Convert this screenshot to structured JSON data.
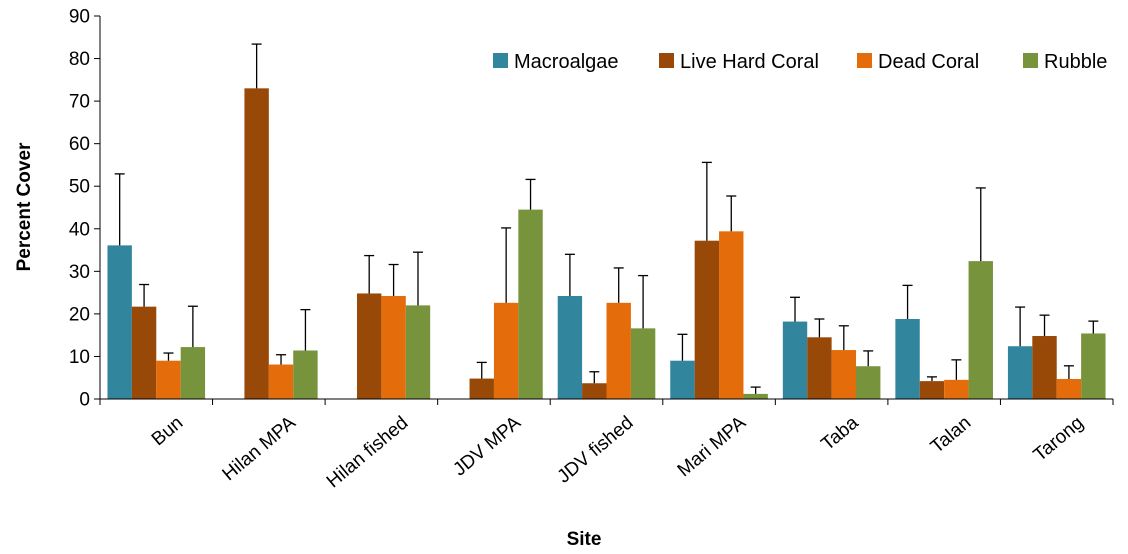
{
  "chart_data": {
    "type": "bar",
    "title": "",
    "xlabel": "Site",
    "ylabel": "Percent Cover",
    "ylim": [
      0,
      90
    ],
    "yticks": [
      0,
      10,
      20,
      30,
      40,
      50,
      60,
      70,
      80,
      90
    ],
    "grid": false,
    "legend_position": "top-right",
    "categories": [
      "Bun",
      "Hilan MPA",
      "Hilan fished",
      "JDV MPA",
      "JDV fished",
      "Mari MPA",
      "Taba",
      "Talan",
      "Tarong"
    ],
    "series": [
      {
        "name": "Macroalgae",
        "color": "#31859c",
        "values": [
          36.1,
          0,
          0,
          0,
          24.2,
          9.0,
          18.2,
          18.8,
          12.4
        ],
        "errors": [
          16.8,
          0,
          0,
          0,
          9.8,
          6.2,
          5.7,
          7.9,
          9.2
        ]
      },
      {
        "name": "Live Hard Coral",
        "color": "#984807",
        "values": [
          21.7,
          73.0,
          24.8,
          4.8,
          3.7,
          37.2,
          14.5,
          4.2,
          14.8
        ],
        "errors": [
          5.2,
          10.4,
          8.9,
          3.8,
          2.7,
          18.4,
          4.3,
          1.0,
          4.9
        ]
      },
      {
        "name": "Dead Coral",
        "color": "#e46c0a",
        "values": [
          9.0,
          8.1,
          24.2,
          22.6,
          22.6,
          39.4,
          11.5,
          4.5,
          4.7
        ],
        "errors": [
          1.8,
          2.3,
          7.4,
          17.6,
          8.2,
          8.3,
          5.7,
          4.7,
          3.1
        ]
      },
      {
        "name": "Rubble",
        "color": "#77933c",
        "values": [
          12.2,
          11.4,
          22.0,
          44.5,
          16.6,
          1.2,
          7.7,
          32.4,
          15.4
        ],
        "errors": [
          9.6,
          9.6,
          12.5,
          7.1,
          12.4,
          1.6,
          3.6,
          17.2,
          2.9
        ]
      }
    ]
  }
}
